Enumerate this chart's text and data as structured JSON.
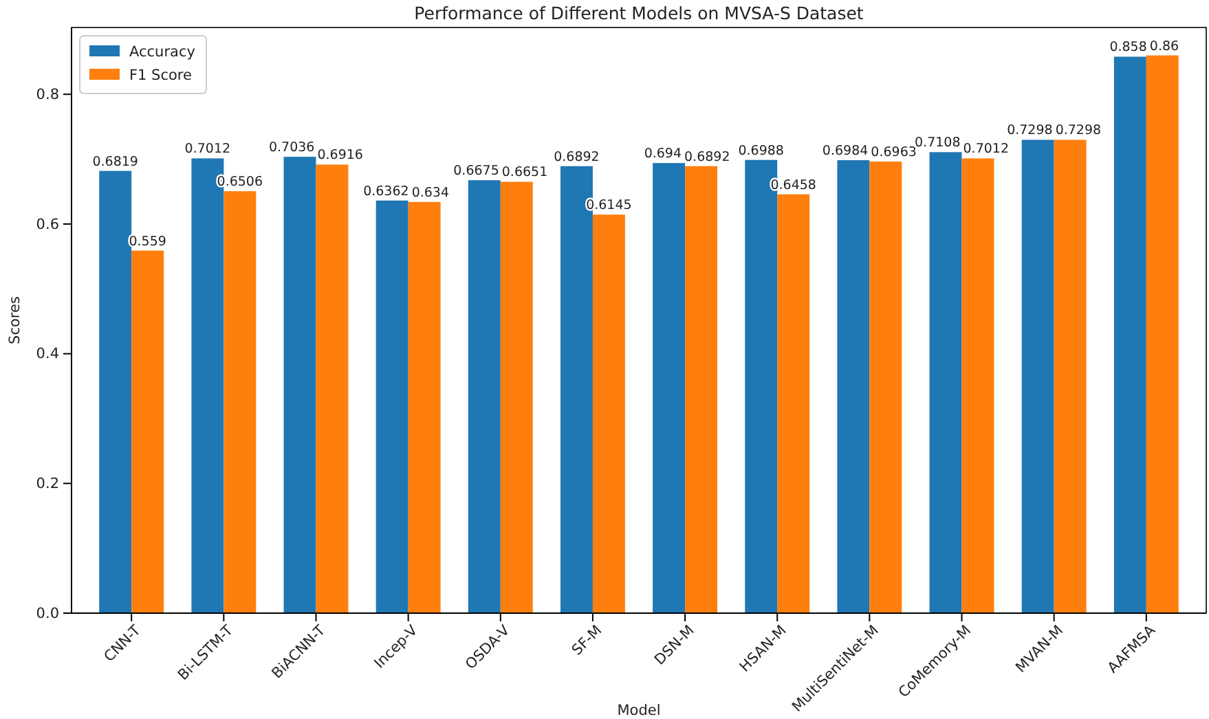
{
  "chart_data": {
    "type": "bar",
    "title": "Performance of Different Models on MVSA-S Dataset",
    "xlabel": "Model",
    "ylabel": "Scores",
    "categories": [
      "CNN-T",
      "Bi-LSTM-T",
      "BiACNN-T",
      "Incep-V",
      "OSDA-V",
      "SF-M",
      "DSN-M",
      "HSAN-M",
      "MultiSentiNet-M",
      "CoMemory-M",
      "MVAN-M",
      "AAFMSA"
    ],
    "series": [
      {
        "name": "Accuracy",
        "color": "#1f77b4",
        "values": [
          0.6819,
          0.7012,
          0.7036,
          0.6362,
          0.6675,
          0.6892,
          0.694,
          0.6988,
          0.6984,
          0.7108,
          0.7298,
          0.858
        ]
      },
      {
        "name": "F1 Score",
        "color": "#ff7f0e",
        "values": [
          0.559,
          0.6506,
          0.6916,
          0.634,
          0.6651,
          0.6145,
          0.6892,
          0.6458,
          0.6963,
          0.7012,
          0.7298,
          0.86
        ]
      }
    ],
    "ylim": [
      0,
      0.903
    ],
    "yticks": [
      {
        "value": 0,
        "label": "0.0"
      },
      {
        "value": 0.2,
        "label": "0.2"
      },
      {
        "value": 0.4,
        "label": "0.4"
      },
      {
        "value": 0.6,
        "label": "0.6"
      },
      {
        "value": 0.8,
        "label": "0.8"
      }
    ],
    "data_labels": true,
    "legend": "top left"
  }
}
